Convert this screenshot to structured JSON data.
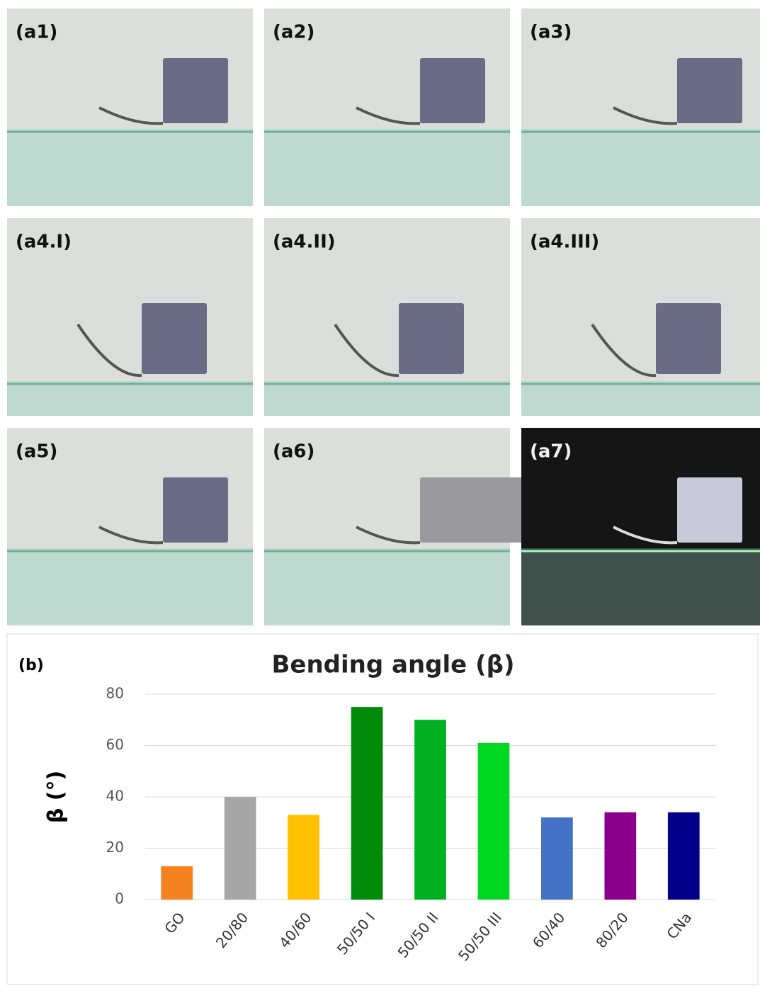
{
  "panels": [
    "(a1)",
    "(a2)",
    "(a3)",
    "(a4.I)",
    "(a4.II)",
    "(a4.III)",
    "(a5)",
    "(a6)",
    "(a7)"
  ],
  "chart_data": {
    "type": "bar",
    "panel_label": "(b)",
    "title": "Bending angle (β)",
    "y_label": "β (°)",
    "categories": [
      "GO",
      "20/80",
      "40/60",
      "50/50 I",
      "50/50 II",
      "50/50 III",
      "60/40",
      "80/20",
      "CNa"
    ],
    "values": [
      13,
      40,
      33,
      75,
      70,
      61,
      32,
      34,
      34
    ],
    "colors": [
      "#f5821f",
      "#a6a6a6",
      "#ffc000",
      "#008c0a",
      "#00b020",
      "#00d822",
      "#4472c4",
      "#8b008b",
      "#00008b"
    ],
    "ylim": [
      0,
      80
    ],
    "yticks": [
      0,
      20,
      40,
      60,
      80
    ],
    "grid": true
  }
}
